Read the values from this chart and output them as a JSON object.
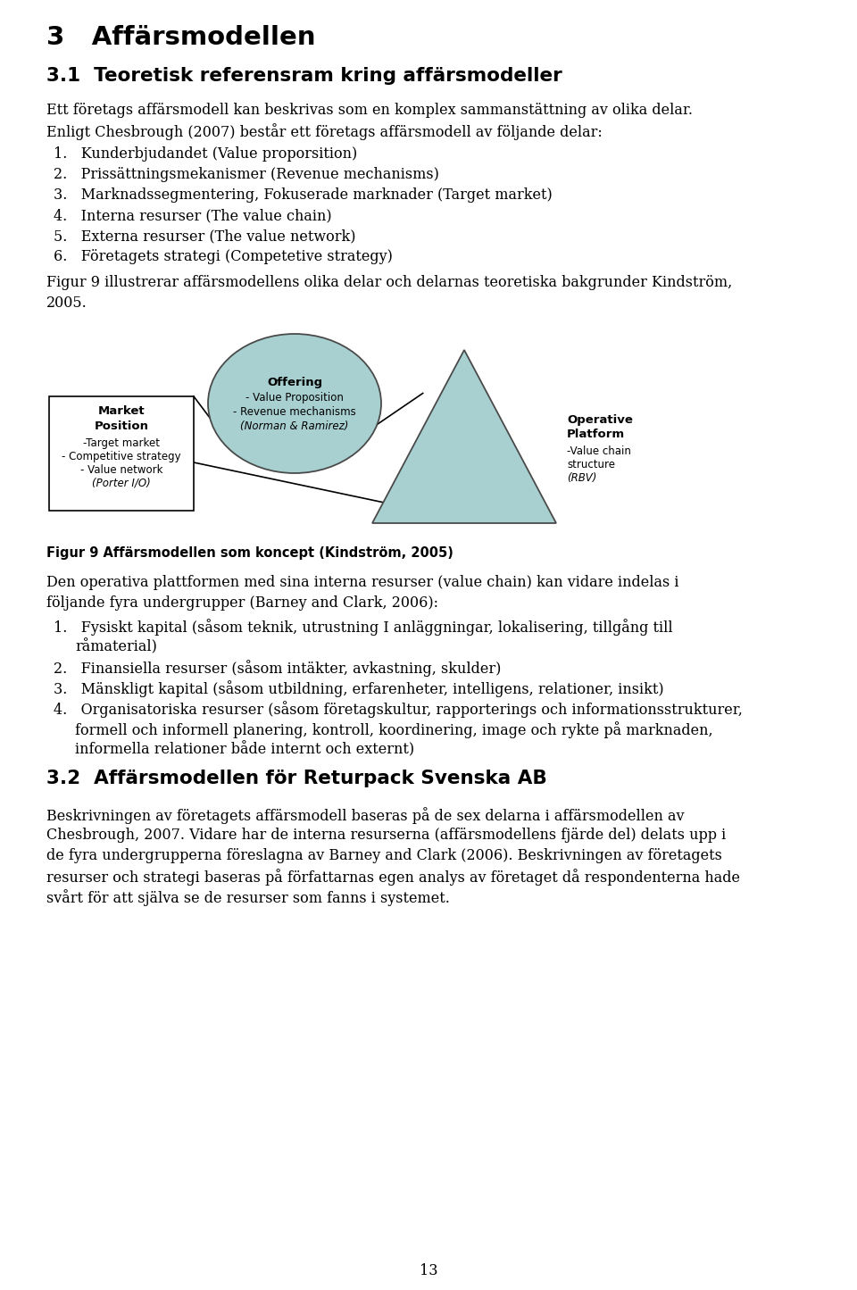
{
  "bg_color": "#ffffff",
  "page_number": "13",
  "heading1": "3   Affärsmodellen",
  "heading2": "3.1  Teoretisk referensram kring affärsmodeller",
  "para1_line1": "Ett företags affärsmodell kan beskrivas som en komplex sammanstättning av olika delar.",
  "para1_line2": "Enligt Chesbrough (2007) består ett företags affärsmodell av följande delar:",
  "list_items": [
    "1.   Kunderbjudandet (Value proporsition)",
    "2.   Prissättningsmekanismer (Revenue mechanisms)",
    "3.   Marknadssegmentering, Fokuserade marknader (Target market)",
    "4.   Interna resurser (The value chain)",
    "5.   Externa resurser (The value network)",
    "6.   Företagets strategi (Competetive strategy)"
  ],
  "para2_line1": "Figur 9 illustrerar affärsmodellens olika delar och delarnas teoretiska bakgrunder Kindström,",
  "para2_line2": "2005.",
  "fig_caption": "Figur 9 Affärsmodellen som koncept (Kindström, 2005)",
  "para3_line1": "Den operativa plattformen med sina interna resurser (value chain) kan vidare indelas i",
  "para3_line2": "följande fyra undergrupper (Barney and Clark, 2006):",
  "list2": [
    [
      "1.",
      "Fysiskt kapital (såsom teknik, utrustning I anläggningar, lokalisering, tillgång till"
    ],
    [
      "",
      "råmaterial)"
    ],
    [
      "2.",
      "Finansiella resurser (såsom intäkter, avkastning, skulder)"
    ],
    [
      "3.",
      "Mänskligt kapital (såsom utbildning, erfarenheter, intelligens, relationer, insikt)"
    ],
    [
      "4.",
      "Organisatoriska resurser (såsom företagskultur, rapporterings och informationsstrukturer,"
    ],
    [
      "",
      "formell och informell planering, kontroll, koordinering, image och rykte på marknaden,"
    ],
    [
      "",
      "informella relationer både internt och externt)"
    ]
  ],
  "heading3": "3.2  Affärsmodellen för Returpack Svenska AB",
  "para4": [
    "Beskrivningen av företagets affärsmodell baseras på de sex delarna i affärsmodellen av",
    "Chesbrough, 2007. Vidare har de interna resurserna (affärsmodellens fjärde del) delats upp i",
    "de fyra undergrupperna föreslagna av Barney and Clark (2006). Beskrivningen av företagets",
    "resurser och strategi baseras på författarnas egen analys av företaget då respondenterna hade",
    "svårt för att själva se de resurser som fanns i systemet."
  ],
  "shape_fill": "#a8d0d0",
  "shape_stroke": "#4a4a4a",
  "offering_title": "Offering",
  "offering_sub1": "- Value Proposition",
  "offering_sub2": "- Revenue mechanisms",
  "offering_sub3": "(Norman & Ramirez)",
  "market_title1": "Market",
  "market_title2": "Position",
  "market_sub1": "-Target market",
  "market_sub2": "- Competitive strategy",
  "market_sub3": "- Value network",
  "market_sub4": "(Porter I/O)",
  "operative_title1": "Operative",
  "operative_title2": "Platform",
  "operative_sub1": "-Value chain",
  "operative_sub2": "structure",
  "operative_sub3": "(RBV)"
}
